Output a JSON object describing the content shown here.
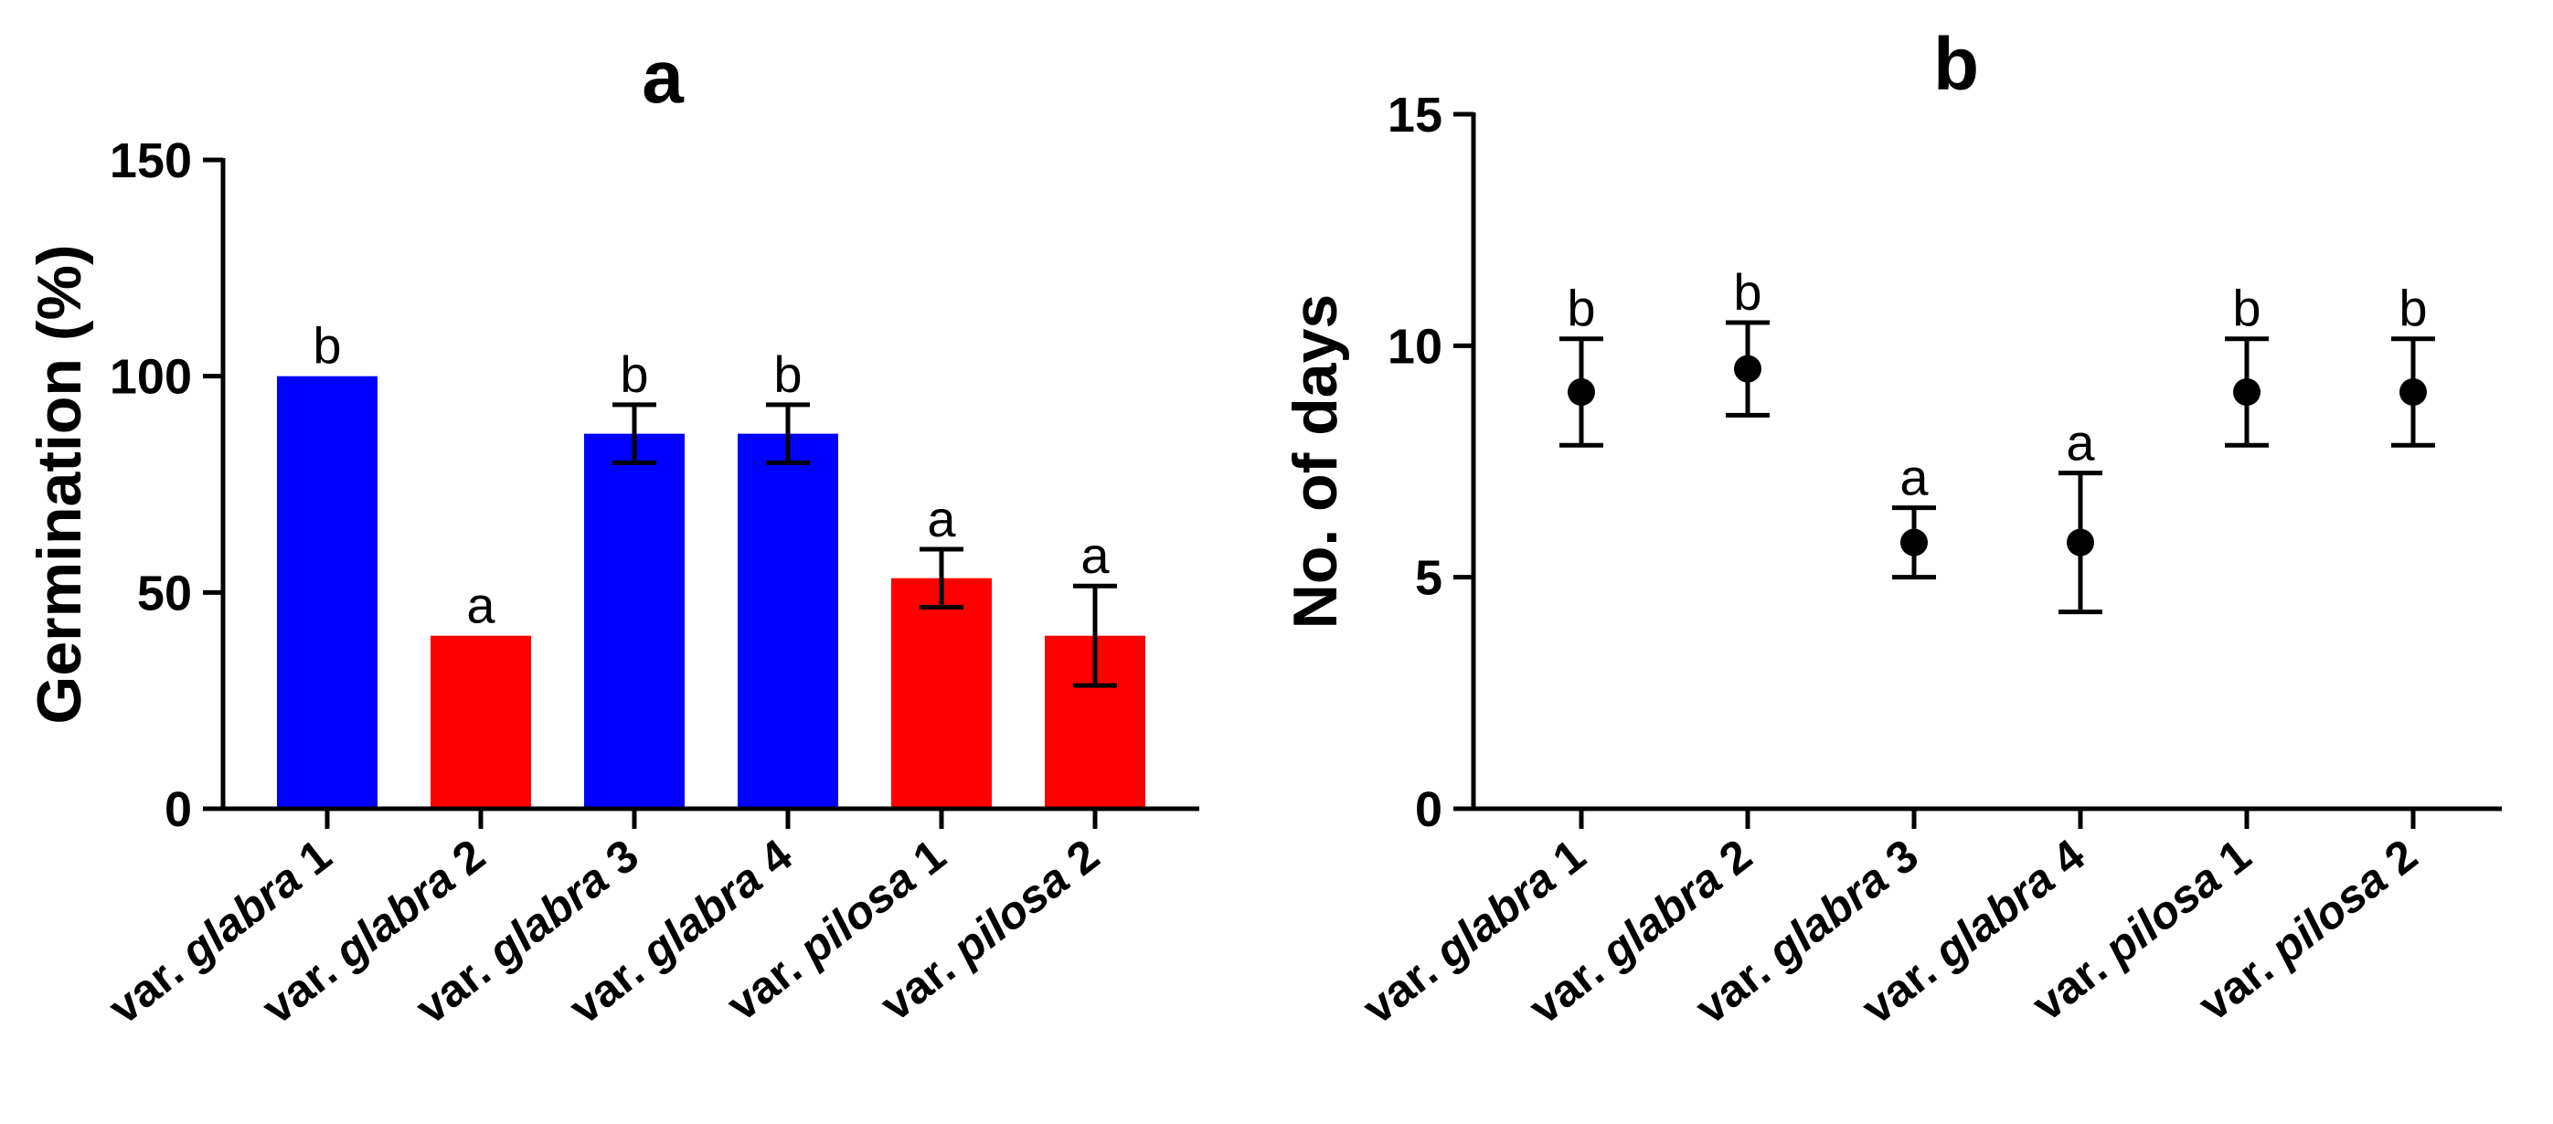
{
  "chart_data": [
    {
      "panel": "a",
      "type": "bar",
      "title": "a",
      "xlabel": "",
      "ylabel": "Germination (%)",
      "ylim": [
        0,
        150
      ],
      "yticks": [
        0,
        50,
        100,
        150
      ],
      "grid": false,
      "categories": [
        {
          "prefix": "var. ",
          "italic": "glabra",
          "suffix": " 1"
        },
        {
          "prefix": "var. ",
          "italic": "glabra",
          "suffix": " 2"
        },
        {
          "prefix": "var. ",
          "italic": "glabra",
          "suffix": " 3"
        },
        {
          "prefix": "var. ",
          "italic": "glabra",
          "suffix": " 4"
        },
        {
          "prefix": "var. ",
          "italic": "pilosa",
          "suffix": " 1"
        },
        {
          "prefix": "var. ",
          "italic": "pilosa",
          "suffix": " 2"
        }
      ],
      "values": [
        100,
        40,
        86.7,
        86.7,
        53.3,
        40
      ],
      "errors": [
        0,
        0,
        6.7,
        6.7,
        6.7,
        11.5
      ],
      "significance": [
        "b",
        "a",
        "b",
        "b",
        "a",
        "a"
      ],
      "bar_colors": [
        "#0000ff",
        "#ff0000",
        "#0000ff",
        "#0000ff",
        "#ff0000",
        "#ff0000"
      ]
    },
    {
      "panel": "b",
      "type": "scatter",
      "title": "b",
      "xlabel": "",
      "ylabel": "No. of days",
      "ylim": [
        0,
        15
      ],
      "yticks": [
        0,
        5,
        10,
        15
      ],
      "grid": false,
      "categories": [
        {
          "prefix": "var. ",
          "italic": "glabra",
          "suffix": " 1"
        },
        {
          "prefix": "var. ",
          "italic": "glabra",
          "suffix": " 2"
        },
        {
          "prefix": "var. ",
          "italic": "glabra",
          "suffix": " 3"
        },
        {
          "prefix": "var. ",
          "italic": "glabra",
          "suffix": " 4"
        },
        {
          "prefix": "var. ",
          "italic": "pilosa",
          "suffix": " 1"
        },
        {
          "prefix": "var. ",
          "italic": "pilosa",
          "suffix": " 2"
        }
      ],
      "values": [
        9.0,
        9.5,
        5.75,
        5.75,
        9.0,
        9.0
      ],
      "errors": [
        1.15,
        1.0,
        0.75,
        1.5,
        1.15,
        1.15
      ],
      "significance": [
        "b",
        "b",
        "a",
        "a",
        "b",
        "b"
      ],
      "point_color": "#000000"
    }
  ]
}
